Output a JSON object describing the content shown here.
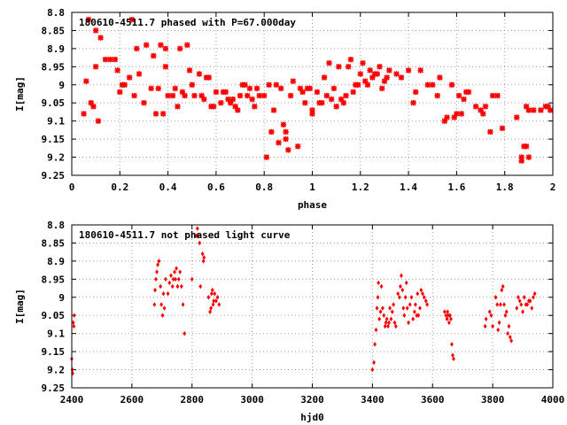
{
  "chart_data": [
    {
      "type": "scatter",
      "title": "180610-4511.7 phased with P=67.000day",
      "xlabel": "phase",
      "ylabel": "I[mag]",
      "xlim": [
        0,
        2
      ],
      "ylim": [
        8.8,
        9.25
      ],
      "y_inverted": true,
      "grid": true,
      "xticks": [
        "0",
        "0.2",
        "0.4",
        "0.6",
        "0.8",
        "1",
        "1.2",
        "1.4",
        "1.6",
        "1.8",
        "2"
      ],
      "yticks": [
        "8.8",
        "8.85",
        "8.9",
        "8.95",
        "9",
        "9.05",
        "9.1",
        "9.15",
        "9.2",
        "9.25"
      ],
      "color": "#ff0000",
      "points": [
        [
          0.05,
          9.08
        ],
        [
          0.06,
          8.99
        ],
        [
          0.07,
          8.82
        ],
        [
          0.08,
          9.05
        ],
        [
          0.09,
          9.06
        ],
        [
          0.1,
          8.95
        ],
        [
          0.1,
          8.85
        ],
        [
          0.11,
          9.1
        ],
        [
          0.12,
          8.87
        ],
        [
          0.14,
          8.93
        ],
        [
          0.16,
          8.93
        ],
        [
          0.18,
          8.93
        ],
        [
          0.19,
          8.96
        ],
        [
          0.2,
          9.02
        ],
        [
          0.21,
          9.0
        ],
        [
          0.22,
          9.0
        ],
        [
          0.24,
          8.98
        ],
        [
          0.25,
          8.82
        ],
        [
          0.26,
          9.03
        ],
        [
          0.27,
          8.9
        ],
        [
          0.28,
          8.97
        ],
        [
          0.3,
          9.05
        ],
        [
          0.31,
          8.89
        ],
        [
          0.33,
          9.01
        ],
        [
          0.34,
          8.92
        ],
        [
          0.35,
          9.08
        ],
        [
          0.36,
          9.01
        ],
        [
          0.37,
          8.89
        ],
        [
          0.38,
          9.08
        ],
        [
          0.39,
          8.9
        ],
        [
          0.39,
          8.95
        ],
        [
          0.4,
          9.03
        ],
        [
          0.42,
          9.03
        ],
        [
          0.43,
          9.01
        ],
        [
          0.44,
          9.06
        ],
        [
          0.45,
          8.9
        ],
        [
          0.46,
          9.02
        ],
        [
          0.47,
          9.03
        ],
        [
          0.48,
          8.89
        ],
        [
          0.49,
          8.96
        ],
        [
          0.5,
          9.0
        ],
        [
          0.51,
          9.03
        ],
        [
          0.53,
          8.97
        ],
        [
          0.54,
          9.03
        ],
        [
          0.55,
          9.04
        ],
        [
          0.56,
          8.98
        ],
        [
          0.57,
          8.98
        ],
        [
          0.58,
          9.06
        ],
        [
          0.59,
          9.06
        ],
        [
          0.6,
          9.02
        ],
        [
          0.62,
          9.05
        ],
        [
          0.63,
          9.02
        ],
        [
          0.64,
          9.02
        ],
        [
          0.65,
          9.04
        ],
        [
          0.66,
          9.05
        ],
        [
          0.67,
          9.04
        ],
        [
          0.68,
          9.06
        ],
        [
          0.69,
          9.07
        ],
        [
          0.7,
          9.03
        ],
        [
          0.71,
          9.0
        ],
        [
          0.72,
          9.0
        ],
        [
          0.73,
          9.03
        ],
        [
          0.74,
          9.01
        ],
        [
          0.75,
          9.04
        ],
        [
          0.76,
          9.06
        ],
        [
          0.77,
          9.01
        ],
        [
          0.78,
          9.03
        ],
        [
          0.8,
          9.03
        ],
        [
          0.81,
          9.2
        ],
        [
          0.82,
          9.0
        ],
        [
          0.83,
          9.13
        ],
        [
          0.84,
          9.07
        ],
        [
          0.85,
          9.0
        ],
        [
          0.86,
          9.16
        ],
        [
          0.87,
          9.01
        ],
        [
          0.88,
          9.11
        ],
        [
          0.89,
          9.13
        ],
        [
          0.89,
          9.15
        ],
        [
          0.9,
          9.18
        ],
        [
          0.91,
          9.03
        ],
        [
          0.92,
          8.99
        ],
        [
          0.94,
          9.17
        ],
        [
          0.95,
          9.01
        ],
        [
          0.96,
          9.02
        ],
        [
          0.97,
          9.05
        ],
        [
          0.98,
          9.01
        ],
        [
          0.99,
          9.01
        ],
        [
          1.0,
          9.07
        ],
        [
          1.0,
          9.08
        ],
        [
          1.02,
          9.02
        ],
        [
          1.03,
          9.05
        ],
        [
          1.04,
          9.05
        ],
        [
          1.05,
          8.98
        ],
        [
          1.06,
          9.03
        ],
        [
          1.07,
          8.94
        ],
        [
          1.08,
          9.04
        ],
        [
          1.09,
          9.01
        ],
        [
          1.1,
          9.06
        ],
        [
          1.11,
          8.95
        ],
        [
          1.12,
          9.04
        ],
        [
          1.13,
          9.05
        ],
        [
          1.14,
          9.03
        ],
        [
          1.15,
          8.95
        ],
        [
          1.16,
          8.93
        ],
        [
          1.17,
          9.02
        ],
        [
          1.18,
          9.0
        ],
        [
          1.19,
          9.0
        ],
        [
          1.2,
          8.97
        ],
        [
          1.21,
          8.94
        ],
        [
          1.22,
          8.99
        ],
        [
          1.23,
          9.0
        ],
        [
          1.24,
          8.96
        ],
        [
          1.25,
          8.98
        ],
        [
          1.26,
          8.97
        ],
        [
          1.27,
          8.97
        ],
        [
          1.28,
          8.95
        ],
        [
          1.29,
          9.01
        ],
        [
          1.3,
          8.99
        ],
        [
          1.31,
          8.98
        ],
        [
          1.32,
          8.96
        ],
        [
          1.35,
          8.97
        ],
        [
          1.37,
          8.98
        ],
        [
          1.4,
          8.96
        ],
        [
          1.42,
          9.05
        ],
        [
          1.43,
          9.02
        ],
        [
          1.45,
          8.96
        ],
        [
          1.48,
          9.0
        ],
        [
          1.5,
          9.0
        ],
        [
          1.52,
          9.03
        ],
        [
          1.53,
          8.98
        ],
        [
          1.55,
          9.1
        ],
        [
          1.56,
          9.09
        ],
        [
          1.58,
          9.0
        ],
        [
          1.59,
          9.09
        ],
        [
          1.6,
          9.08
        ],
        [
          1.61,
          9.03
        ],
        [
          1.62,
          9.08
        ],
        [
          1.63,
          9.04
        ],
        [
          1.64,
          9.02
        ],
        [
          1.65,
          9.02
        ],
        [
          1.68,
          9.06
        ],
        [
          1.7,
          9.07
        ],
        [
          1.71,
          9.08
        ],
        [
          1.72,
          9.06
        ],
        [
          1.74,
          9.13
        ],
        [
          1.75,
          9.03
        ],
        [
          1.77,
          9.03
        ],
        [
          1.79,
          9.12
        ],
        [
          1.85,
          9.09
        ],
        [
          1.87,
          9.2
        ],
        [
          1.87,
          9.21
        ],
        [
          1.88,
          9.17
        ],
        [
          1.89,
          9.06
        ],
        [
          1.89,
          9.17
        ],
        [
          1.9,
          9.2
        ],
        [
          1.9,
          9.07
        ],
        [
          1.92,
          9.07
        ],
        [
          1.95,
          9.07
        ],
        [
          1.97,
          9.06
        ],
        [
          1.98,
          9.06
        ],
        [
          1.99,
          9.07
        ]
      ]
    },
    {
      "type": "scatter",
      "title": "180610-4511.7 not phased light curve",
      "xlabel": "hjd0",
      "ylabel": "I[mag]",
      "xlim": [
        2400,
        4000
      ],
      "ylim": [
        8.8,
        9.25
      ],
      "y_inverted": true,
      "grid": true,
      "xticks": [
        "2400",
        "2600",
        "2800",
        "3000",
        "3200",
        "3400",
        "3600",
        "3800",
        "4000"
      ],
      "yticks": [
        "8.8",
        "8.85",
        "8.9",
        "8.95",
        "9",
        "9.05",
        "9.1",
        "9.15",
        "9.2",
        "9.25"
      ],
      "color": "#ff0000",
      "points": [
        [
          2400,
          9.17
        ],
        [
          2402,
          9.2
        ],
        [
          2403,
          9.21
        ],
        [
          2405,
          9.07
        ],
        [
          2407,
          9.08
        ],
        [
          2408,
          9.05
        ],
        [
          2675,
          9.02
        ],
        [
          2677,
          8.98
        ],
        [
          2680,
          8.95
        ],
        [
          2683,
          8.93
        ],
        [
          2686,
          8.91
        ],
        [
          2690,
          8.9
        ],
        [
          2695,
          8.97
        ],
        [
          2698,
          9.02
        ],
        [
          2702,
          9.05
        ],
        [
          2705,
          8.99
        ],
        [
          2708,
          9.03
        ],
        [
          2712,
          8.95
        ],
        [
          2720,
          8.99
        ],
        [
          2725,
          8.96
        ],
        [
          2730,
          8.94
        ],
        [
          2735,
          8.97
        ],
        [
          2738,
          8.95
        ],
        [
          2742,
          8.93
        ],
        [
          2745,
          8.95
        ],
        [
          2748,
          8.92
        ],
        [
          2752,
          8.97
        ],
        [
          2756,
          8.95
        ],
        [
          2760,
          8.93
        ],
        [
          2765,
          8.97
        ],
        [
          2770,
          9.02
        ],
        [
          2775,
          9.1
        ],
        [
          2800,
          8.95
        ],
        [
          2815,
          8.83
        ],
        [
          2818,
          8.81
        ],
        [
          2820,
          8.83
        ],
        [
          2825,
          8.85
        ],
        [
          2828,
          8.97
        ],
        [
          2835,
          8.88
        ],
        [
          2838,
          8.9
        ],
        [
          2840,
          8.89
        ],
        [
          2855,
          9.0
        ],
        [
          2860,
          9.04
        ],
        [
          2863,
          9.03
        ],
        [
          2865,
          8.99
        ],
        [
          2868,
          8.98
        ],
        [
          2870,
          9.02
        ],
        [
          2872,
          9.01
        ],
        [
          2875,
          8.99
        ],
        [
          2880,
          9.01
        ],
        [
          2885,
          9.0
        ],
        [
          2890,
          9.02
        ],
        [
          3400,
          9.2
        ],
        [
          3405,
          9.18
        ],
        [
          3408,
          9.13
        ],
        [
          3412,
          9.09
        ],
        [
          3415,
          9.03
        ],
        [
          3418,
          9.0
        ],
        [
          3420,
          8.96
        ],
        [
          3423,
          9.06
        ],
        [
          3427,
          9.04
        ],
        [
          3430,
          8.97
        ],
        [
          3434,
          9.03
        ],
        [
          3438,
          9.05
        ],
        [
          3442,
          9.08
        ],
        [
          3445,
          9.07
        ],
        [
          3448,
          9.06
        ],
        [
          3452,
          9.08
        ],
        [
          3455,
          9.07
        ],
        [
          3458,
          9.03
        ],
        [
          3462,
          9.06
        ],
        [
          3466,
          9.04
        ],
        [
          3470,
          9.02
        ],
        [
          3474,
          9.07
        ],
        [
          3478,
          9.08
        ],
        [
          3485,
          8.99
        ],
        [
          3490,
          9.0
        ],
        [
          3493,
          8.97
        ],
        [
          3496,
          8.94
        ],
        [
          3500,
          8.98
        ],
        [
          3503,
          9.03
        ],
        [
          3506,
          9.05
        ],
        [
          3510,
          9.0
        ],
        [
          3513,
          8.96
        ],
        [
          3516,
          9.03
        ],
        [
          3520,
          9.07
        ],
        [
          3525,
          9.02
        ],
        [
          3530,
          9.0
        ],
        [
          3535,
          9.06
        ],
        [
          3540,
          9.04
        ],
        [
          3543,
          9.02
        ],
        [
          3547,
          9.05
        ],
        [
          3550,
          8.99
        ],
        [
          3553,
          9.05
        ],
        [
          3558,
          9.03
        ],
        [
          3562,
          8.98
        ],
        [
          3567,
          8.99
        ],
        [
          3572,
          9.0
        ],
        [
          3578,
          9.01
        ],
        [
          3582,
          9.02
        ],
        [
          3640,
          9.04
        ],
        [
          3645,
          9.05
        ],
        [
          3648,
          9.06
        ],
        [
          3650,
          9.04
        ],
        [
          3652,
          9.05
        ],
        [
          3655,
          9.07
        ],
        [
          3658,
          9.05
        ],
        [
          3661,
          9.06
        ],
        [
          3664,
          9.13
        ],
        [
          3667,
          9.16
        ],
        [
          3670,
          9.17
        ],
        [
          3775,
          9.08
        ],
        [
          3778,
          9.06
        ],
        [
          3790,
          9.04
        ],
        [
          3795,
          9.05
        ],
        [
          3800,
          9.08
        ],
        [
          3810,
          9.0
        ],
        [
          3815,
          9.02
        ],
        [
          3818,
          9.09
        ],
        [
          3822,
          9.07
        ],
        [
          3826,
          9.02
        ],
        [
          3830,
          8.98
        ],
        [
          3834,
          8.97
        ],
        [
          3838,
          9.02
        ],
        [
          3842,
          9.05
        ],
        [
          3846,
          9.04
        ],
        [
          3850,
          9.1
        ],
        [
          3854,
          9.08
        ],
        [
          3858,
          9.11
        ],
        [
          3862,
          9.12
        ],
        [
          3880,
          9.03
        ],
        [
          3885,
          9.0
        ],
        [
          3890,
          9.01
        ],
        [
          3895,
          9.02
        ],
        [
          3900,
          9.04
        ],
        [
          3905,
          9.0
        ],
        [
          3910,
          9.02
        ],
        [
          3915,
          9.02
        ],
        [
          3920,
          9.01
        ],
        [
          3925,
          9.01
        ],
        [
          3930,
          9.03
        ],
        [
          3935,
          9.0
        ],
        [
          3940,
          8.99
        ]
      ]
    }
  ]
}
